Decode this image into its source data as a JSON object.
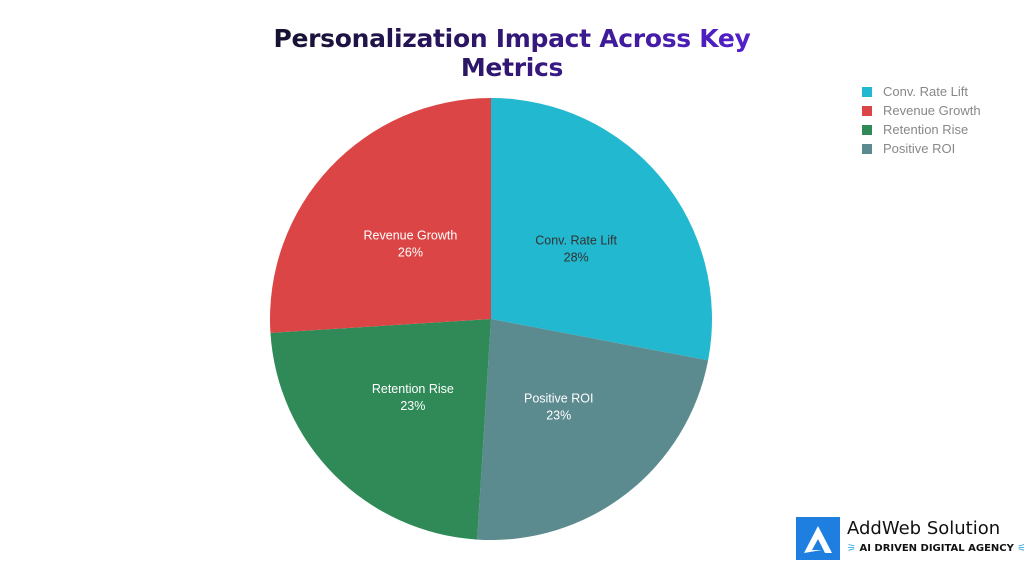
{
  "chart_data": {
    "type": "pie",
    "title": "Personalization Impact Across Key Metrics",
    "slices": [
      {
        "label": "Conv. Rate Lift",
        "value": 28,
        "display": "28%",
        "color": "#22b8cf",
        "text_color": "#333333"
      },
      {
        "label": "Positive ROI",
        "value": 23,
        "display": "23%",
        "color": "#5b8a8f",
        "text_color": "#ffffff"
      },
      {
        "label": "Retention Rise",
        "value": 23,
        "display": "23%",
        "color": "#2f8a57",
        "text_color": "#ffffff"
      },
      {
        "label": "Revenue Growth",
        "value": 26,
        "display": "26%",
        "color": "#dc4545",
        "text_color": "#ffffff"
      }
    ],
    "start": "top",
    "direction": "clockwise",
    "legend": {
      "position": "top-right",
      "entries": [
        {
          "label": "Conv. Rate Lift",
          "color": "#22b8cf"
        },
        {
          "label": "Revenue Growth",
          "color": "#dc4545"
        },
        {
          "label": "Retention Rise",
          "color": "#2f8a57"
        },
        {
          "label": "Positive ROI",
          "color": "#5b8a8f"
        }
      ]
    }
  },
  "logo": {
    "name": "AddWeb Solution",
    "tagline": "AI DRIVEN DIGITAL AGENCY"
  }
}
